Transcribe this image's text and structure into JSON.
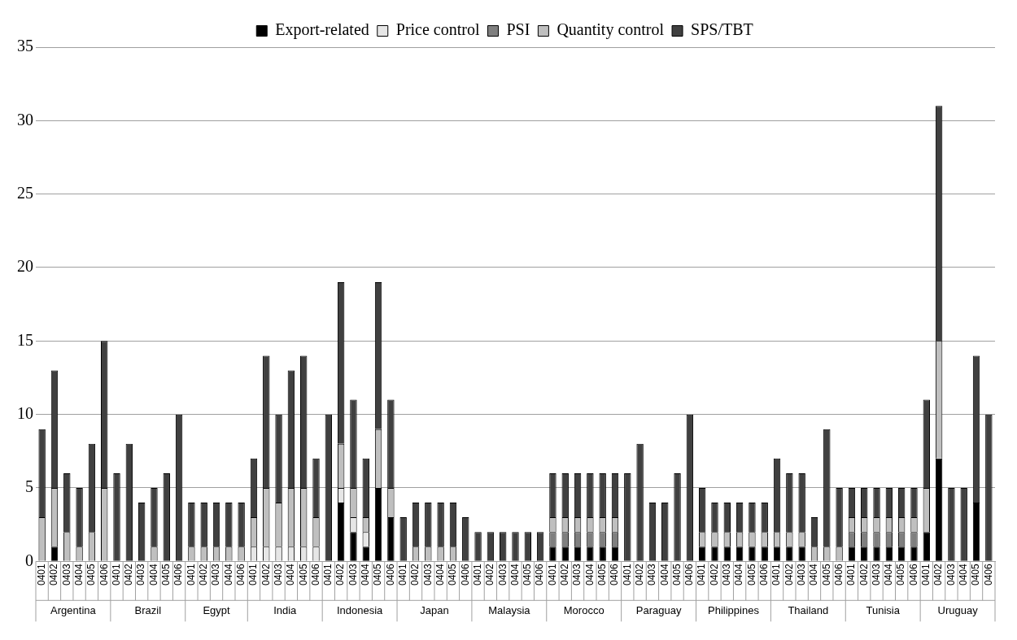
{
  "chart_data": {
    "type": "bar",
    "stacked": true,
    "legend": "top",
    "grid": "y",
    "ylim": [
      0,
      35
    ],
    "yticks": [
      0,
      5,
      10,
      15,
      20,
      25,
      30,
      35
    ],
    "categories": [
      "0401",
      "0402",
      "0403",
      "0404",
      "0405",
      "0406",
      "0401",
      "0402",
      "0403",
      "0404",
      "0405",
      "0406",
      "0401",
      "0402",
      "0403",
      "0404",
      "0406",
      "0401",
      "0402",
      "0403",
      "0404",
      "0405",
      "0406",
      "0401",
      "0402",
      "0403",
      "0404",
      "0405",
      "0406",
      "0401",
      "0402",
      "0403",
      "0404",
      "0405",
      "0406",
      "0401",
      "0402",
      "0403",
      "0404",
      "0405",
      "0406",
      "0401",
      "0402",
      "0403",
      "0404",
      "0405",
      "0406",
      "0401",
      "0402",
      "0403",
      "0404",
      "0405",
      "0406",
      "0401",
      "0402",
      "0403",
      "0404",
      "0405",
      "0406",
      "0401",
      "0402",
      "0403",
      "0404",
      "0405",
      "0406",
      "0401",
      "0402",
      "0403",
      "0404",
      "0405",
      "0406",
      "0401",
      "0402",
      "0403",
      "0404",
      "0405",
      "0406"
    ],
    "annotations": [
      "Argentina",
      "Brazil",
      "Egypt",
      "India",
      "Indonesia",
      "Japan",
      "Malaysia",
      "Morocco",
      "Paraguay",
      "Philippines",
      "Thailand",
      "Tunisia",
      "Uruguay"
    ],
    "series": [
      {
        "name": "Export-related",
        "color": "#000000",
        "values": [
          0,
          1,
          0,
          0,
          0,
          0,
          0,
          0,
          0,
          0,
          0,
          0,
          0,
          0,
          0,
          0,
          0,
          0,
          0,
          0,
          0,
          0,
          0,
          0,
          4,
          2,
          1,
          5,
          3,
          0,
          0,
          0,
          0,
          0,
          0,
          0,
          0,
          0,
          0,
          0,
          0,
          1,
          1,
          1,
          1,
          1,
          1,
          0,
          0,
          0,
          0,
          0,
          0,
          1,
          1,
          1,
          1,
          1,
          1,
          1,
          1,
          1,
          0,
          0,
          0,
          1,
          1,
          1,
          1,
          1,
          1,
          2,
          7,
          0,
          0,
          4,
          0
        ]
      },
      {
        "name": "Price control",
        "color": "#e6e6e6",
        "values": [
          0,
          0,
          0,
          0,
          0,
          0,
          0,
          0,
          0,
          0,
          0,
          0,
          0,
          0,
          0,
          0,
          0,
          1,
          1,
          1,
          1,
          1,
          1,
          0,
          1,
          1,
          1,
          0,
          0,
          0,
          0,
          0,
          0,
          0,
          0,
          0,
          0,
          0,
          0,
          0,
          0,
          0,
          0,
          0,
          0,
          0,
          0,
          0,
          0,
          0,
          0,
          0,
          0,
          0,
          0,
          0,
          0,
          0,
          0,
          0,
          0,
          0,
          0,
          0,
          0,
          0,
          0,
          0,
          0,
          0,
          0,
          0,
          0,
          0,
          0,
          0,
          0
        ]
      },
      {
        "name": "PSI",
        "color": "#7f7f7f",
        "values": [
          0,
          0,
          0,
          0,
          0,
          0,
          0,
          0,
          0,
          0,
          0,
          0,
          0,
          0,
          0,
          0,
          0,
          0,
          0,
          0,
          0,
          0,
          0,
          0,
          0,
          0,
          0,
          0,
          0,
          0,
          0,
          0,
          0,
          0,
          0,
          0,
          0,
          0,
          0,
          0,
          0,
          1,
          1,
          1,
          1,
          1,
          1,
          0,
          0,
          0,
          0,
          0,
          0,
          0,
          0,
          0,
          0,
          0,
          0,
          0,
          0,
          0,
          0,
          0,
          0,
          1,
          1,
          1,
          1,
          1,
          1,
          0,
          0,
          0,
          0,
          0,
          0
        ]
      },
      {
        "name": "Quantity control",
        "color": "#bfbfbf",
        "values": [
          3,
          4,
          2,
          1,
          2,
          5,
          0,
          0,
          0,
          1,
          0,
          0,
          1,
          1,
          1,
          1,
          1,
          2,
          4,
          3,
          4,
          4,
          2,
          0,
          3,
          2,
          1,
          4,
          2,
          0,
          1,
          1,
          1,
          1,
          0,
          0,
          0,
          0,
          0,
          0,
          0,
          1,
          1,
          1,
          1,
          1,
          1,
          0,
          0,
          0,
          0,
          0,
          0,
          1,
          1,
          1,
          1,
          1,
          1,
          1,
          1,
          1,
          1,
          1,
          1,
          1,
          1,
          1,
          1,
          1,
          1,
          3,
          8,
          0,
          0,
          0,
          0
        ]
      },
      {
        "name": "SPS/TBT",
        "color": "#404040",
        "values": [
          6,
          8,
          4,
          4,
          6,
          10,
          6,
          8,
          4,
          4,
          6,
          10,
          3,
          3,
          3,
          3,
          3,
          4,
          9,
          6,
          8,
          9,
          4,
          10,
          11,
          6,
          4,
          10,
          6,
          3,
          3,
          3,
          3,
          3,
          3,
          2,
          2,
          2,
          2,
          2,
          2,
          3,
          3,
          3,
          3,
          3,
          3,
          6,
          8,
          4,
          4,
          6,
          10,
          3,
          2,
          2,
          2,
          2,
          2,
          5,
          4,
          4,
          2,
          8,
          4,
          2,
          2,
          2,
          2,
          2,
          2,
          6,
          16,
          5,
          5,
          10,
          10
        ]
      }
    ]
  }
}
